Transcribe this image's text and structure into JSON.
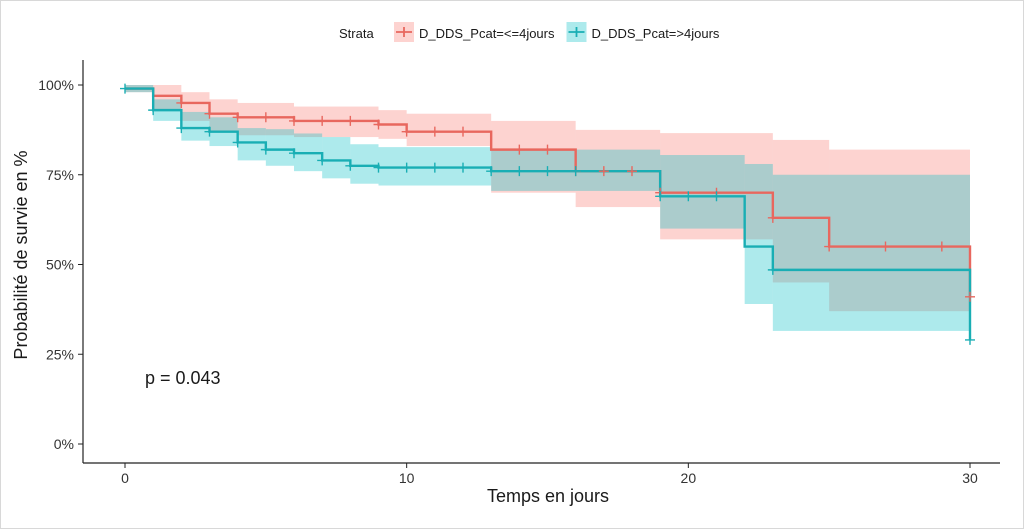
{
  "chart_data": {
    "type": "line",
    "subtype": "kaplan-meier step curve with confidence bands",
    "xlabel": "Temps en jours",
    "ylabel": "Probabilité de survie en %",
    "xlim": [
      0,
      30
    ],
    "ylim": [
      0,
      100
    ],
    "x_ticks": [
      0,
      10,
      20,
      30
    ],
    "y_ticks": [
      0,
      25,
      50,
      75,
      100
    ],
    "y_tick_labels": [
      "0%",
      "25%",
      "50%",
      "75%",
      "100%"
    ],
    "grid": false,
    "legend": {
      "title": "Strata",
      "placement": "top"
    },
    "annotation": "p = 0.043",
    "series": [
      {
        "name": "D_DDS_Pcat=<=4jours",
        "color": "#F8766D",
        "line_color": "#E8675E",
        "times": [
          0,
          1,
          2,
          3,
          4,
          6,
          9,
          10,
          13,
          16,
          19,
          23,
          25,
          30
        ],
        "survival": [
          99,
          97,
          95,
          92,
          91,
          90,
          89,
          87,
          82,
          76,
          70,
          63,
          55,
          41
        ],
        "upper": [
          100,
          100,
          98,
          96,
          95,
          94,
          93,
          92,
          90,
          87.5,
          86.6,
          84.7,
          82,
          82
        ],
        "lower": [
          98,
          93,
          90,
          87,
          86,
          85.5,
          85,
          83,
          70,
          66,
          57,
          45,
          37,
          37
        ],
        "censored": [
          2,
          3,
          4,
          5,
          6,
          7,
          8,
          9,
          10,
          11,
          12,
          14,
          15,
          16,
          17,
          18,
          19,
          21,
          23,
          25,
          27,
          29,
          30
        ]
      },
      {
        "name": "D_DDS_Pcat=>4jours",
        "color": "#00BFC4",
        "line_color": "#19AEB4",
        "times": [
          0,
          1,
          2,
          3,
          4,
          5,
          6,
          7,
          8,
          9,
          13,
          19,
          22,
          23,
          30
        ],
        "survival": [
          99,
          93,
          88,
          87,
          84,
          82,
          81,
          79,
          77.5,
          77,
          76,
          69,
          55,
          48.5,
          29
        ],
        "upper": [
          100,
          96,
          92.5,
          91,
          88,
          87.7,
          86.5,
          85.5,
          83.5,
          82.7,
          82,
          80.5,
          78,
          75,
          75
        ],
        "lower": [
          98,
          90,
          84.5,
          83,
          79,
          77.5,
          76,
          74,
          72.5,
          72,
          70.5,
          60,
          39,
          31.5,
          31.5
        ],
        "censored": [
          0,
          1,
          2,
          3,
          4,
          5,
          6,
          7,
          8,
          9,
          10,
          11,
          12,
          13,
          14,
          15,
          16,
          19,
          20,
          21,
          23,
          30
        ]
      }
    ]
  }
}
